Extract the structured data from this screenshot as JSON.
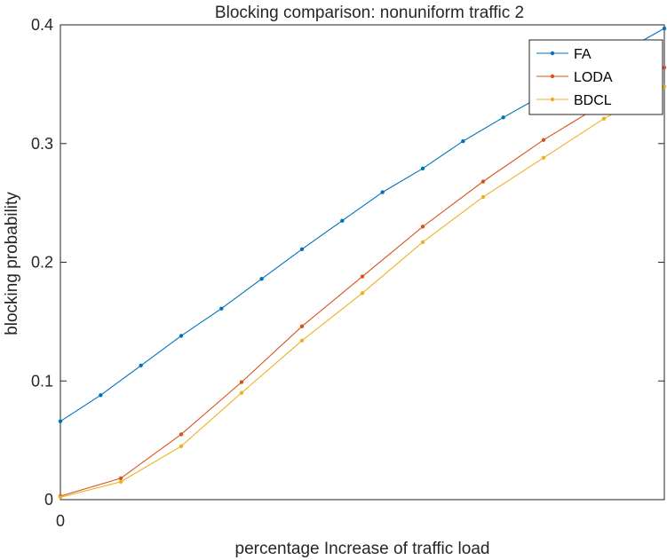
{
  "chart_data": {
    "type": "line",
    "title": "Blocking comparison: nonuniform traffic 2",
    "xlabel": "percentage Increase of traffic load",
    "ylabel": "blocking probability",
    "xlim": [
      0,
      15
    ],
    "ylim": [
      0,
      0.4
    ],
    "xticks": [
      {
        "value": 0,
        "label": "0"
      }
    ],
    "yticks": [
      {
        "value": 0,
        "label": "0"
      },
      {
        "value": 0.1,
        "label": "0.1"
      },
      {
        "value": 0.2,
        "label": "0.2"
      },
      {
        "value": 0.3,
        "label": "0.3"
      },
      {
        "value": 0.4,
        "label": "0.4"
      }
    ],
    "grid": false,
    "legend_position": "top-right",
    "series": [
      {
        "name": "FA",
        "color": "#0072BD",
        "x": [
          0,
          1,
          2,
          3,
          4,
          5,
          6,
          7,
          8,
          9,
          10,
          11,
          12,
          13,
          14,
          15
        ],
        "values": [
          0.066,
          0.088,
          0.113,
          0.138,
          0.161,
          0.186,
          0.211,
          0.235,
          0.259,
          0.279,
          0.302,
          0.322,
          0.341,
          0.358,
          0.378,
          0.397
        ]
      },
      {
        "name": "LODA",
        "color": "#D95319",
        "x": [
          0,
          1.5,
          3,
          4.5,
          6,
          7.5,
          9,
          10.5,
          12,
          13.5,
          15
        ],
        "values": [
          0.003,
          0.018,
          0.055,
          0.099,
          0.146,
          0.188,
          0.23,
          0.268,
          0.303,
          0.334,
          0.364
        ]
      },
      {
        "name": "BDCL",
        "color": "#EDB120",
        "x": [
          0,
          1.5,
          3,
          4.5,
          6,
          7.5,
          9,
          10.5,
          12,
          13.5,
          15
        ],
        "values": [
          0.002,
          0.015,
          0.045,
          0.09,
          0.134,
          0.174,
          0.217,
          0.255,
          0.288,
          0.321,
          0.348
        ]
      }
    ]
  }
}
